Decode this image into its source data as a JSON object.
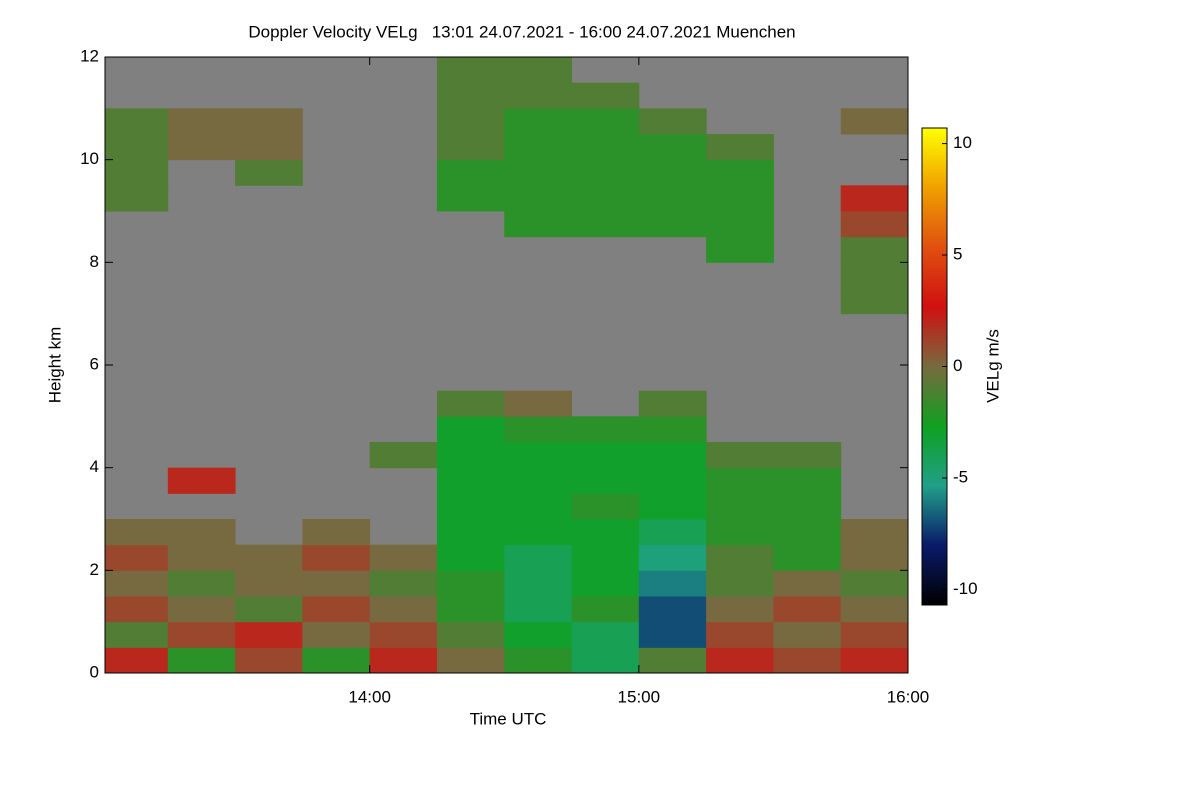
{
  "chart_data": {
    "type": "heatmap",
    "title": "Doppler Velocity VELg   13:01 24.07.2021 - 16:00 24.07.2021 Muenchen",
    "x_label": "Time UTC",
    "y_label": "Height km",
    "colorbar_label": "VELg m/s",
    "xlim": [
      13.0167,
      16.0
    ],
    "xticks": [
      {
        "value": 14,
        "label": "14:00"
      },
      {
        "value": 15,
        "label": "15:00"
      },
      {
        "value": 16,
        "label": "16:00"
      }
    ],
    "ylim": [
      0,
      12
    ],
    "yticks": [
      0,
      2,
      4,
      6,
      8,
      10,
      12
    ],
    "zlim": [
      -10.7,
      10.7
    ],
    "zticks": [
      -10,
      -5,
      0,
      5,
      10
    ],
    "background": "#808080",
    "colormap": [
      "#000000",
      "#0a1a6a",
      "#20a088",
      "#10a020",
      "#786a40",
      "#d01010",
      "#e05010",
      "#f0a000",
      "#ffff00"
    ],
    "x": [
      13.125,
      13.375,
      13.625,
      13.875,
      14.125,
      14.375,
      14.625,
      14.875,
      15.125,
      15.375,
      15.625,
      15.875
    ],
    "y": [
      0.25,
      0.75,
      1.25,
      1.75,
      2.25,
      2.75,
      3.25,
      3.75,
      4.25,
      4.75,
      5.25,
      5.75,
      6.25,
      6.75,
      7.25,
      7.75,
      8.25,
      8.75,
      9.25,
      9.75,
      10.25,
      10.75,
      11.25,
      11.75
    ],
    "z": [
      [
        2,
        -2,
        1,
        -2,
        2,
        0,
        -2,
        -4,
        -1,
        2,
        1,
        2
      ],
      [
        -1,
        1,
        2,
        0,
        1,
        -1,
        -3,
        -4,
        -7,
        1,
        0,
        1
      ],
      [
        1,
        0,
        -1,
        1,
        0,
        -2,
        -4,
        -2,
        -7,
        0,
        1,
        0
      ],
      [
        0,
        -1,
        0,
        0,
        -1,
        -2,
        -4,
        -3,
        -6,
        -1,
        0,
        -1
      ],
      [
        1,
        0,
        0,
        1,
        0,
        -3,
        -4,
        -3,
        -5,
        -1,
        -2,
        0
      ],
      [
        0,
        0,
        null,
        0,
        null,
        -3,
        -3,
        -3,
        -4,
        -2,
        -2,
        0
      ],
      [
        null,
        null,
        null,
        null,
        null,
        -3,
        -3,
        -2,
        -3,
        -2,
        -2,
        null
      ],
      [
        null,
        2,
        null,
        null,
        null,
        -3,
        -3,
        -3,
        -3,
        -2,
        -2,
        null
      ],
      [
        null,
        null,
        null,
        null,
        -1,
        -3,
        -3,
        -3,
        -3,
        -1,
        -1,
        null
      ],
      [
        null,
        null,
        null,
        null,
        null,
        -3,
        -2,
        -2,
        -2,
        null,
        null,
        null
      ],
      [
        null,
        null,
        null,
        null,
        null,
        -1,
        0,
        null,
        -1,
        null,
        null,
        null
      ],
      [
        null,
        null,
        null,
        null,
        null,
        null,
        null,
        null,
        null,
        null,
        null,
        null
      ],
      [
        null,
        null,
        null,
        null,
        null,
        null,
        null,
        null,
        null,
        null,
        null,
        null
      ],
      [
        null,
        null,
        null,
        null,
        null,
        null,
        null,
        null,
        null,
        null,
        null,
        null
      ],
      [
        null,
        null,
        null,
        null,
        null,
        null,
        null,
        null,
        null,
        null,
        null,
        -1
      ],
      [
        null,
        null,
        null,
        null,
        null,
        null,
        null,
        null,
        null,
        null,
        null,
        -1
      ],
      [
        null,
        null,
        null,
        null,
        null,
        null,
        null,
        null,
        null,
        -2,
        null,
        -1
      ],
      [
        null,
        null,
        null,
        null,
        null,
        null,
        -2,
        -2,
        -2,
        -2,
        null,
        1
      ],
      [
        -1,
        null,
        null,
        null,
        null,
        -2,
        -2,
        -2,
        -2,
        -2,
        null,
        2
      ],
      [
        -1,
        null,
        -1,
        null,
        null,
        -2,
        -2,
        -2,
        -2,
        -2,
        null,
        null
      ],
      [
        -1,
        0,
        0,
        null,
        null,
        -1,
        -2,
        -2,
        -2,
        -1,
        null,
        null
      ],
      [
        -1,
        0,
        0,
        null,
        null,
        -1,
        -2,
        -2,
        -1,
        null,
        null,
        0
      ],
      [
        null,
        null,
        null,
        null,
        null,
        -1,
        -1,
        -1,
        null,
        null,
        null,
        null
      ],
      [
        null,
        null,
        null,
        null,
        null,
        -1,
        -1,
        null,
        null,
        null,
        null,
        null
      ]
    ]
  }
}
